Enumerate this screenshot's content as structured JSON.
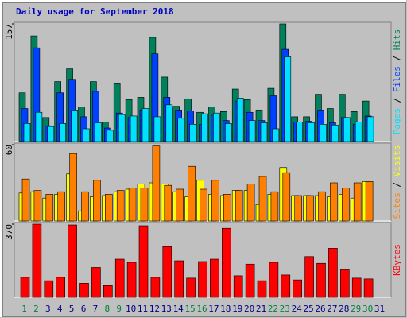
{
  "chart_data": [
    {
      "type": "bar",
      "title": "Daily usage for September 2018",
      "ylim": [
        0,
        157
      ],
      "yticks": [
        157
      ],
      "legend_separator": " / ",
      "series": [
        {
          "name": "Hits",
          "color": "#00805c",
          "values": [
            65,
            141,
            32,
            80,
            97,
            46,
            80,
            26,
            77,
            56,
            59,
            139,
            86,
            47,
            57,
            39,
            46,
            40,
            70,
            56,
            42,
            71,
            157,
            33,
            33,
            63,
            44,
            63,
            40,
            54,
            null
          ]
        },
        {
          "name": "Files",
          "color": "#0040ff",
          "values": [
            44,
            125,
            21,
            65,
            83,
            33,
            67,
            18,
            38,
            32,
            42,
            117,
            59,
            42,
            41,
            23,
            35,
            28,
            54,
            39,
            28,
            61,
            123,
            26,
            27,
            42,
            25,
            32,
            23,
            34,
            null
          ]
        },
        {
          "name": "Pages",
          "color": "#00e0ff",
          "values": [
            24,
            39,
            20,
            24,
            42,
            17,
            25,
            15,
            36,
            34,
            44,
            33,
            49,
            31,
            23,
            37,
            38,
            24,
            58,
            28,
            25,
            17,
            113,
            26,
            25,
            23,
            22,
            32,
            26,
            33,
            null
          ]
        }
      ]
    },
    {
      "type": "bar",
      "ylim": [
        0,
        60
      ],
      "yticks": [
        60
      ],
      "legend_separator": " / ",
      "series": [
        {
          "name": "Visits",
          "color": "#ffff00",
          "values": [
            22,
            23,
            18,
            21,
            37,
            8,
            19,
            20,
            23,
            25,
            29,
            30,
            29,
            23,
            19,
            32,
            21,
            20,
            24,
            24,
            13,
            21,
            42,
            20,
            20,
            20,
            19,
            21,
            18,
            31,
            null
          ]
        },
        {
          "name": "Sites",
          "color": "#ff8000",
          "values": [
            33,
            24,
            21,
            23,
            53,
            23,
            32,
            21,
            24,
            26,
            26,
            59,
            28,
            25,
            43,
            25,
            32,
            21,
            24,
            29,
            35,
            23,
            38,
            20,
            20,
            23,
            30,
            26,
            30,
            31,
            null
          ]
        }
      ]
    },
    {
      "type": "bar",
      "ylim": [
        0,
        370
      ],
      "yticks": [
        370
      ],
      "legend_separator": " / ",
      "series": [
        {
          "name": "KBytes",
          "color": "#ff0000",
          "values": [
            101,
            370,
            84,
            101,
            366,
            71,
            151,
            59,
            193,
            177,
            362,
            101,
            256,
            185,
            97,
            181,
            193,
            349,
            109,
            168,
            84,
            177,
            113,
            88,
            206,
            172,
            248,
            143,
            97,
            93,
            null
          ]
        }
      ],
      "categories": [
        "1",
        "2",
        "3",
        "4",
        "5",
        "6",
        "7",
        "8",
        "9",
        "10",
        "11",
        "12",
        "13",
        "14",
        "15",
        "16",
        "17",
        "18",
        "19",
        "20",
        "21",
        "22",
        "23",
        "24",
        "25",
        "26",
        "27",
        "28",
        "29",
        "30",
        "31"
      ],
      "category_color": "#000080",
      "highlight": {
        "color": "#008040",
        "indices": [
          0,
          1,
          7,
          8,
          14,
          15,
          21,
          22,
          28,
          29
        ]
      }
    }
  ]
}
